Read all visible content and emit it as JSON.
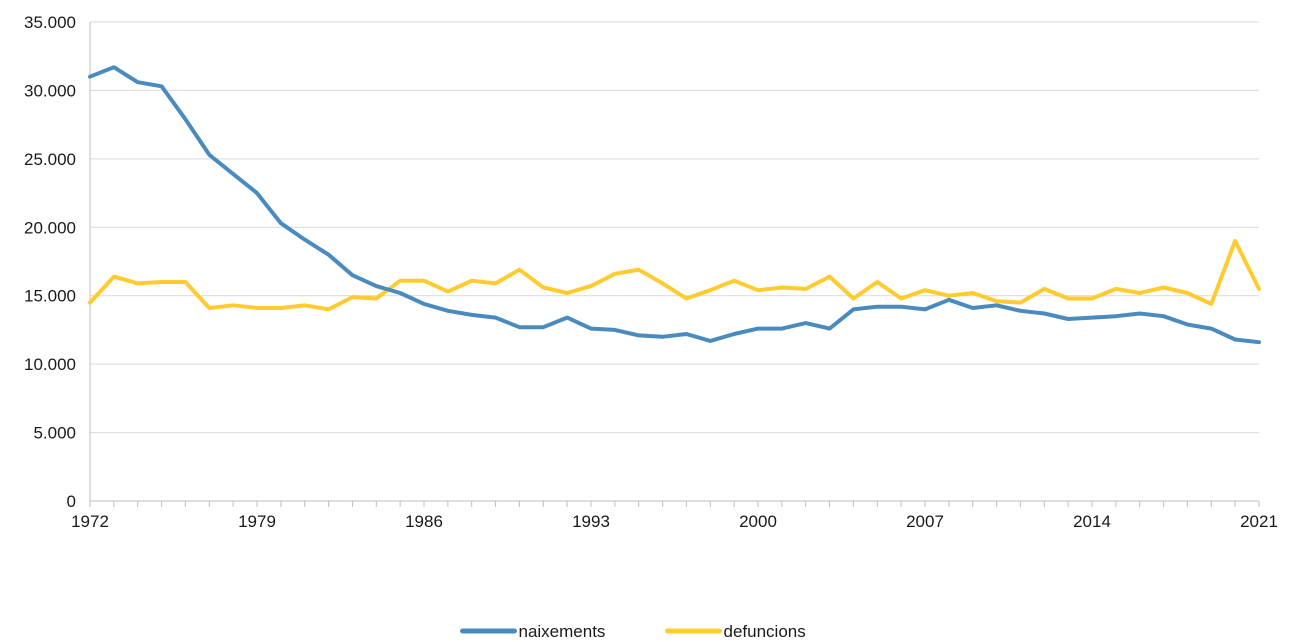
{
  "chart_data": {
    "type": "line",
    "title": "",
    "xlabel": "",
    "ylabel": "",
    "x": [
      1972,
      1973,
      1974,
      1975,
      1976,
      1977,
      1978,
      1979,
      1980,
      1981,
      1982,
      1983,
      1984,
      1985,
      1986,
      1987,
      1988,
      1989,
      1990,
      1991,
      1992,
      1993,
      1994,
      1995,
      1996,
      1997,
      1998,
      1999,
      2000,
      2001,
      2002,
      2003,
      2004,
      2005,
      2006,
      2007,
      2008,
      2009,
      2010,
      2011,
      2012,
      2013,
      2014,
      2015,
      2016,
      2017,
      2018,
      2019,
      2020,
      2021
    ],
    "xticks": [
      "1972",
      "1979",
      "1986",
      "1993",
      "2000",
      "2007",
      "2014",
      "2021"
    ],
    "yticks": [
      "0",
      "5.000",
      "10.000",
      "15.000",
      "20.000",
      "25.000",
      "30.000",
      "35.000"
    ],
    "ylim": [
      0,
      35000
    ],
    "grid": "horizontal",
    "legend_position": "bottom-center",
    "series": [
      {
        "name": "naixements",
        "color": "#4a8bbf",
        "values": [
          31000,
          31700,
          30600,
          30300,
          27900,
          25300,
          23900,
          22500,
          20300,
          19100,
          18000,
          16500,
          15700,
          15200,
          14400,
          13900,
          13600,
          13400,
          12700,
          12700,
          13400,
          12600,
          12500,
          12100,
          12000,
          12200,
          11700,
          12200,
          12600,
          12600,
          13000,
          12600,
          14000,
          14200,
          14200,
          14000,
          14700,
          14100,
          14300,
          13900,
          13700,
          13300,
          13400,
          13500,
          13700,
          13500,
          12900,
          12600,
          11800,
          11600
        ]
      },
      {
        "name": "defuncions",
        "color": "#ffcb2f",
        "values": [
          14500,
          16400,
          15900,
          16000,
          16000,
          14100,
          14300,
          14100,
          14100,
          14300,
          14000,
          14900,
          14800,
          16100,
          16100,
          15300,
          16100,
          15900,
          16900,
          15600,
          15200,
          15700,
          16600,
          16900,
          15900,
          14800,
          15400,
          16100,
          15400,
          15600,
          15500,
          16400,
          14800,
          16000,
          14800,
          15400,
          15000,
          15200,
          14600,
          14500,
          15500,
          14800,
          14800,
          15500,
          15200,
          15600,
          15200,
          14400,
          19000,
          15500
        ]
      }
    ]
  }
}
